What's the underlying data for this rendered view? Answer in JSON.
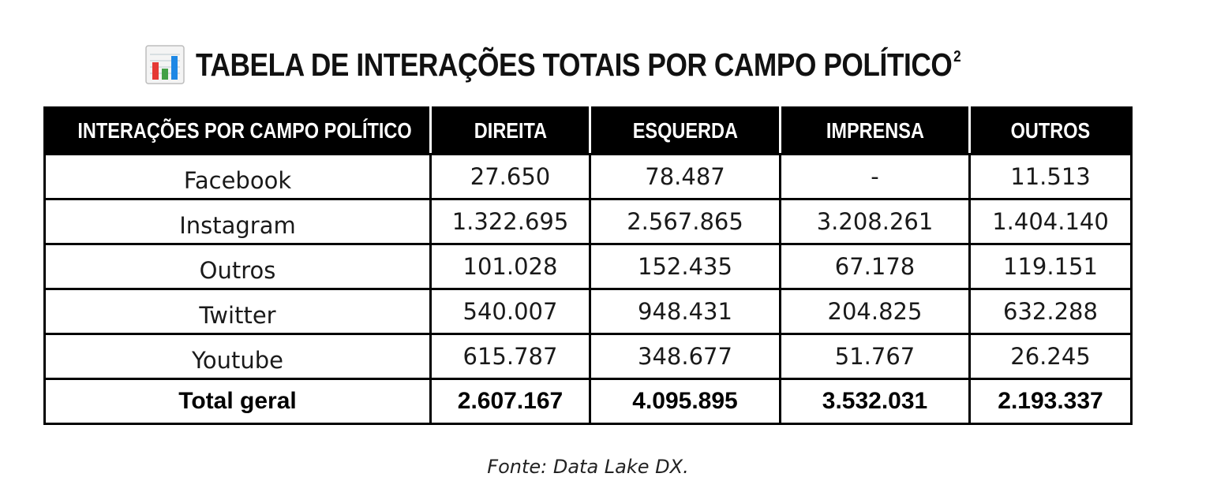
{
  "title": {
    "text": "TABELA DE INTERAÇÕES TOTAIS POR CAMPO POLÍTICO",
    "superscript": "2",
    "icon": "bar-chart-icon"
  },
  "table": {
    "headers": [
      "INTERAÇÕES POR CAMPO POLÍTICO",
      "DIREITA",
      "ESQUERDA",
      "IMPRENSA",
      "OUTROS"
    ],
    "rows": [
      {
        "platform": "Facebook",
        "values": [
          "27.650",
          "78.487",
          "-",
          "11.513"
        ]
      },
      {
        "platform": "Instagram",
        "values": [
          "1.322.695",
          "2.567.865",
          "3.208.261",
          "1.404.140"
        ]
      },
      {
        "platform": "Outros",
        "values": [
          "101.028",
          "152.435",
          "67.178",
          "119.151"
        ]
      },
      {
        "platform": "Twitter",
        "values": [
          "540.007",
          "948.431",
          "204.825",
          "632.288"
        ]
      },
      {
        "platform": "Youtube",
        "values": [
          "615.787",
          "348.677",
          "51.767",
          "26.245"
        ]
      }
    ],
    "total": {
      "label": "Total geral",
      "values": [
        "2.607.167",
        "4.095.895",
        "3.532.031",
        "2.193.337"
      ]
    }
  },
  "source": "Fonte: Data Lake DX.",
  "colors": {
    "header_bg": "#000000",
    "header_text": "#ffffff",
    "icon_bars": [
      "#e53935",
      "#43a047",
      "#1e88e5"
    ]
  }
}
